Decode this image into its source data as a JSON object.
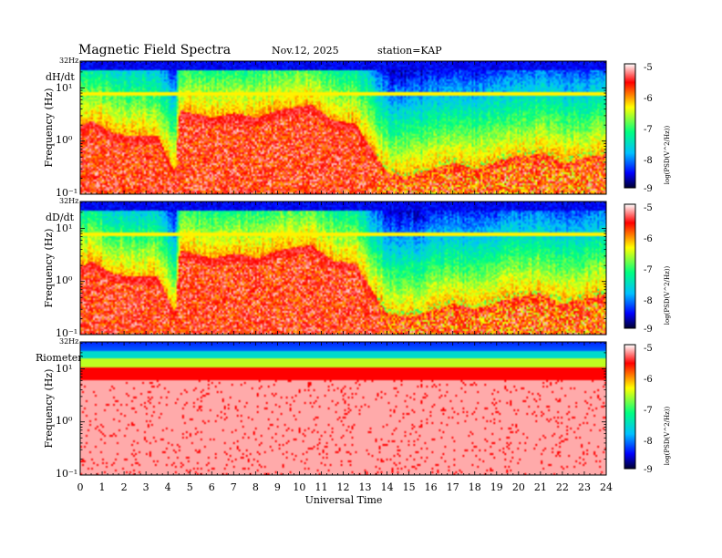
{
  "header": {
    "title": "Magnetic  Field  Spectra",
    "date": "Nov.12, 2025",
    "station": "station=KAP"
  },
  "chart_data": {
    "type": "heatmap",
    "xlabel": "Universal Time",
    "x_ticks": [
      "0",
      "1",
      "2",
      "3",
      "4",
      "5",
      "6",
      "7",
      "8",
      "9",
      "10",
      "11",
      "12",
      "13",
      "14",
      "15",
      "16",
      "17",
      "18",
      "19",
      "20",
      "21",
      "22",
      "23",
      "24"
    ],
    "xlim": [
      0,
      24
    ],
    "colorbar": {
      "label": "log(PSD(V^2/Hz))",
      "ticks": [
        "-5",
        "-6",
        "-7",
        "-8",
        "-9"
      ],
      "range": [
        -9,
        -5
      ]
    },
    "panels": [
      {
        "name": "dH/dt",
        "ylabel": "Frequency  (Hz)",
        "top_label": "32Hz",
        "y_ticks": [
          "10¹",
          "10⁰",
          "10⁻¹"
        ],
        "ylim_hz": [
          0.1,
          32
        ],
        "pc1_band_hz": 8
      },
      {
        "name": "dD/dt",
        "ylabel": "Frequency  (Hz)",
        "top_label": "32Hz",
        "y_ticks": [
          "10¹",
          "10⁰",
          "10⁻¹"
        ],
        "ylim_hz": [
          0.1,
          32
        ],
        "pc1_band_hz": 8
      },
      {
        "name": "Riometer",
        "ylabel": "Frequency  (Hz)",
        "top_label": "32Hz",
        "y_ticks": [
          "10¹",
          "10⁰",
          "10⁻¹"
        ],
        "ylim_hz": [
          0.1,
          32
        ]
      }
    ]
  }
}
